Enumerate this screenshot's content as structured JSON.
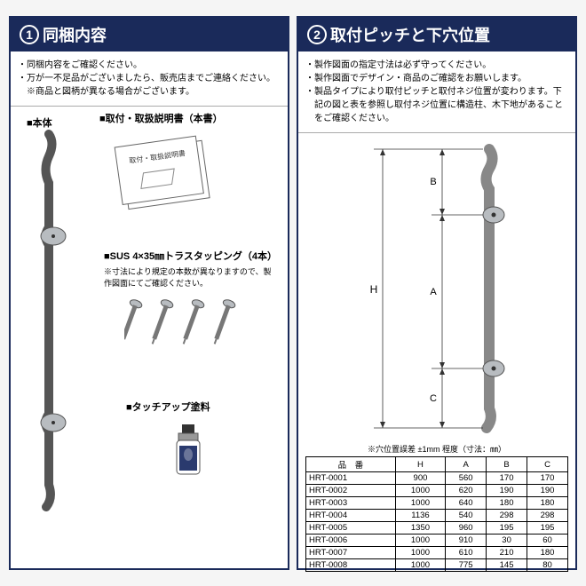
{
  "panel1": {
    "num": "1",
    "title": "同梱内容",
    "notes": [
      "・同梱内容をご確認ください。",
      "・万が一不足品がございましたら、販売店までご連絡ください。",
      "　※商品と図柄が異なる場合がございます。"
    ],
    "item_body": "■本体",
    "item_manual": "■取付・取扱説明書（本書）",
    "manual_cover": "取付・取扱説明書",
    "item_screws": "■SUS 4×35㎜トラスタッピング（4本）",
    "screws_note": "※寸法により規定の本数が異なりますので、製作図面にてご確認ください。",
    "item_paint": "■タッチアップ塗料"
  },
  "panel2": {
    "num": "2",
    "title": "取付ピッチと下穴位置",
    "notes": [
      "・製作図面の指定寸法は必ず守ってください。",
      "・製作図面でデザイン・商品のご確認をお願いします。",
      "・製品タイプにより取付ピッチと取付ネジ位置が変わります。下記の図と表を参照し取付ネジ位置に構造柱、木下地があることをご確認ください。"
    ],
    "dim_labels": {
      "H": "H",
      "A": "A",
      "B": "B",
      "C": "C"
    },
    "table_caption": "※穴位置誤差 ±1mm 程度（寸法：㎜）",
    "columns": [
      "品　番",
      "H",
      "A",
      "B",
      "C"
    ],
    "rows": [
      [
        "HRT-0001",
        "900",
        "560",
        "170",
        "170"
      ],
      [
        "HRT-0002",
        "1000",
        "620",
        "190",
        "190"
      ],
      [
        "HRT-0003",
        "1000",
        "640",
        "180",
        "180"
      ],
      [
        "HRT-0004",
        "1136",
        "540",
        "298",
        "298"
      ],
      [
        "HRT-0005",
        "1350",
        "960",
        "195",
        "195"
      ],
      [
        "HRT-0006",
        "1000",
        "910",
        "30",
        "60"
      ],
      [
        "HRT-0007",
        "1000",
        "610",
        "210",
        "180"
      ],
      [
        "HRT-0008",
        "1000",
        "775",
        "145",
        "80"
      ]
    ]
  },
  "colors": {
    "frame": "#1a2a5a",
    "metal": "#b8bcc0",
    "bottle": "#2a3a6e"
  }
}
